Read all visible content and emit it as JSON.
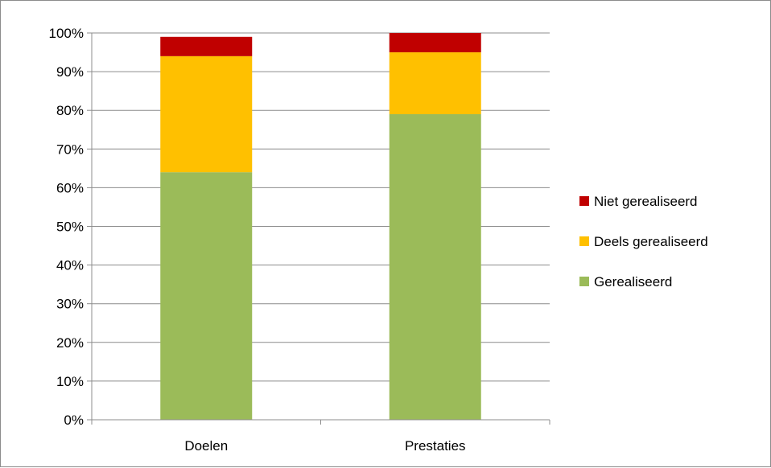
{
  "chart_data": {
    "type": "bar",
    "stacked": true,
    "categories": [
      "Doelen",
      "Prestaties"
    ],
    "series": [
      {
        "name": "Gerealiseerd",
        "values": [
          64,
          79
        ],
        "color": "#9BBB59"
      },
      {
        "name": "Deels gerealiseerd",
        "values": [
          30,
          16
        ],
        "color": "#FFC000"
      },
      {
        "name": "Niet gerealiseerd",
        "values": [
          5,
          5
        ],
        "color": "#C00000"
      }
    ],
    "ylim": [
      0,
      100
    ],
    "yticks": [
      "0%",
      "10%",
      "20%",
      "30%",
      "40%",
      "50%",
      "60%",
      "70%",
      "80%",
      "90%",
      "100%"
    ],
    "grid": true,
    "legend_position": "right",
    "legend_order": [
      "Niet gerealiseerd",
      "Deels gerealiseerd",
      "Gerealiseerd"
    ]
  }
}
